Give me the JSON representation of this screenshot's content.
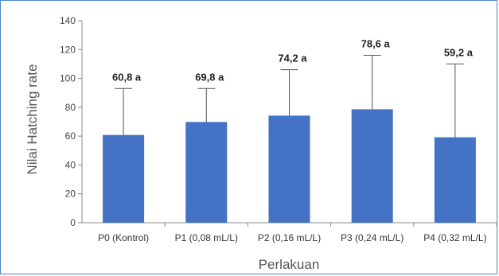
{
  "chart_data": {
    "type": "bar",
    "title": "",
    "xlabel": "Perlakuan",
    "ylabel": "Nilai Hatching rate",
    "ylim": [
      0,
      140
    ],
    "yticks": [
      0,
      20,
      40,
      60,
      80,
      100,
      120,
      140
    ],
    "grid": false,
    "legend": "none",
    "bar_color": "#4472c4",
    "categories": [
      "P0 (Kontrol)",
      "P1 (0,08 mL/L)",
      "P2 (0,16 mL/L)",
      "P3 (0,24 mL/L)",
      "P4 (0,32 mL/L)"
    ],
    "values": [
      60.8,
      69.8,
      74.2,
      78.6,
      59.2
    ],
    "error_upper": [
      93,
      93,
      106,
      116,
      110
    ],
    "data_labels": [
      "60,8 a",
      "69,8 a",
      "74,2 a",
      "78,6 a",
      "59,2 a"
    ]
  }
}
